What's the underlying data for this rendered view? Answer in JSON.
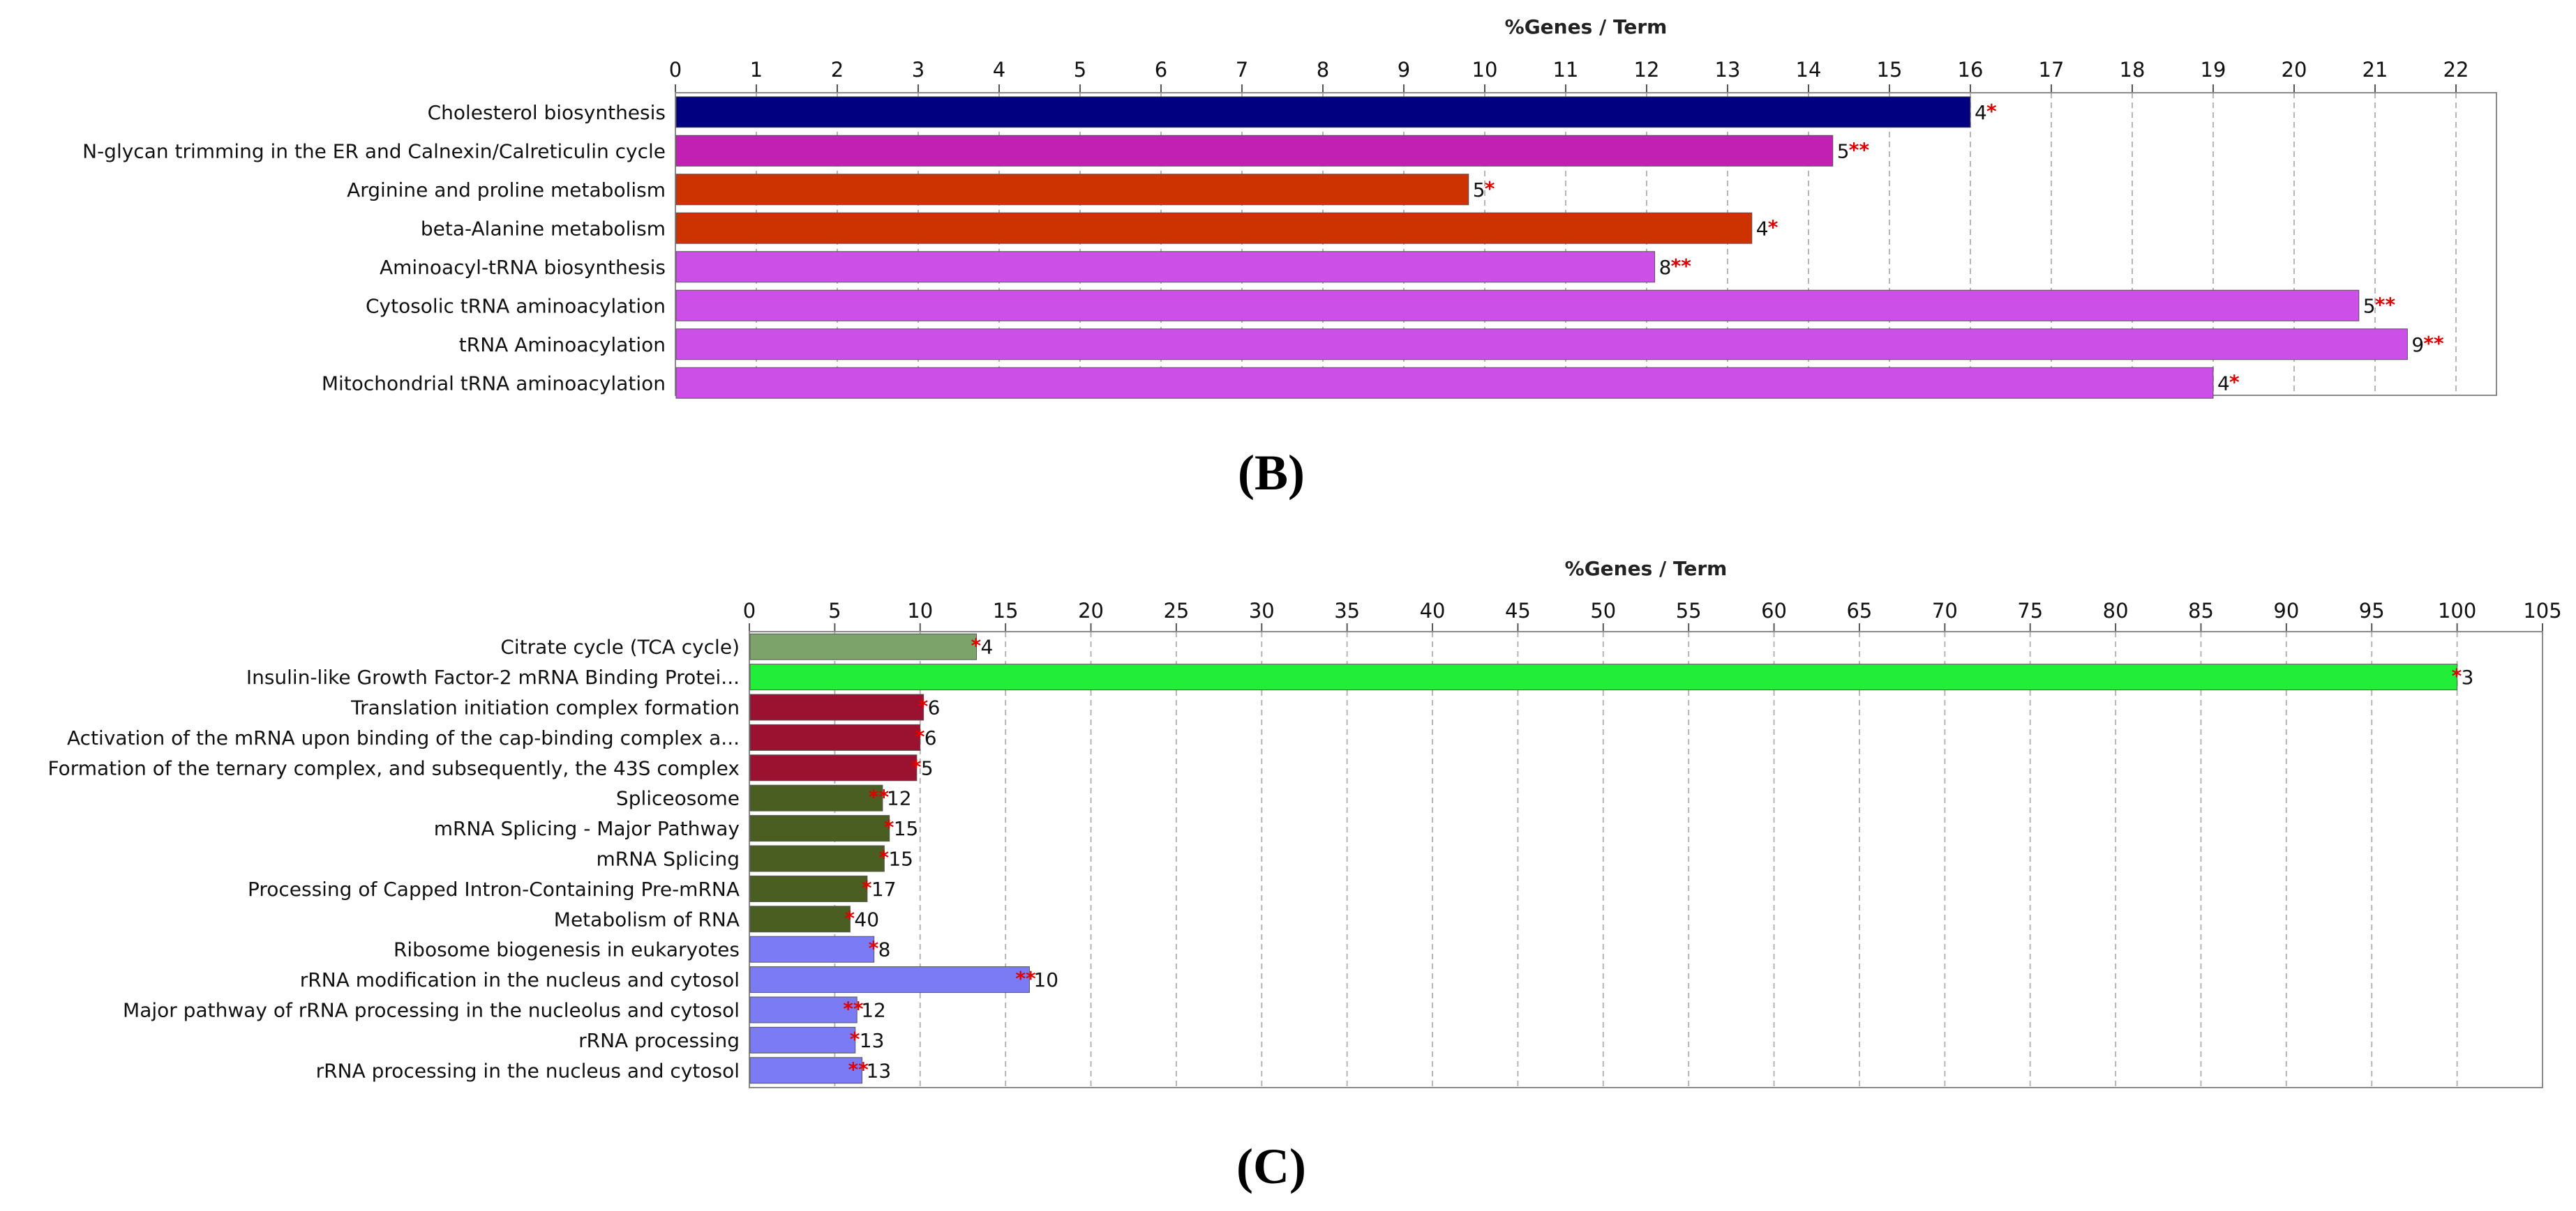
{
  "chart_data": [
    {
      "type": "bar",
      "orientation": "horizontal",
      "panel_label": "(B)",
      "axis_title": "%Genes / Term",
      "xlim": [
        0,
        22.5
      ],
      "ticks": [
        0,
        1,
        2,
        3,
        4,
        5,
        6,
        7,
        8,
        9,
        10,
        11,
        12,
        13,
        14,
        15,
        16,
        17,
        18,
        19,
        20,
        21,
        22
      ],
      "grid": true,
      "bars": [
        {
          "label": "Cholesterol biosynthesis",
          "value": 16.0,
          "count": "4",
          "sig": "*",
          "color": "#000080"
        },
        {
          "label": "N-glycan trimming in the ER and Calnexin/Calreticulin cycle",
          "value": 14.3,
          "count": "5",
          "sig": "**",
          "color": "#C21FB3"
        },
        {
          "label": "Arginine and proline metabolism",
          "value": 9.8,
          "count": "5",
          "sig": "*",
          "color": "#CC3300"
        },
        {
          "label": "beta-Alanine metabolism",
          "value": 13.3,
          "count": "4",
          "sig": "*",
          "color": "#CC3300"
        },
        {
          "label": "Aminoacyl-tRNA biosynthesis",
          "value": 12.1,
          "count": "8",
          "sig": "**",
          "color": "#CC4FE8"
        },
        {
          "label": "Cytosolic tRNA aminoacylation",
          "value": 20.8,
          "count": "5",
          "sig": "**",
          "color": "#CC4FE8"
        },
        {
          "label": "tRNA Aminoacylation",
          "value": 21.4,
          "count": "9",
          "sig": "**",
          "color": "#CC4FE8"
        },
        {
          "label": "Mitochondrial tRNA aminoacylation",
          "value": 19.0,
          "count": "4",
          "sig": "*",
          "color": "#CC4FE8"
        }
      ]
    },
    {
      "type": "bar",
      "orientation": "horizontal",
      "panel_label": "(C)",
      "axis_title": "%Genes / Term",
      "xlim": [
        0,
        105
      ],
      "ticks": [
        0,
        5,
        10,
        15,
        20,
        25,
        30,
        35,
        40,
        45,
        50,
        55,
        60,
        65,
        70,
        75,
        80,
        85,
        90,
        95,
        100,
        105
      ],
      "grid": true,
      "bars": [
        {
          "label": "Citrate cycle (TCA cycle)",
          "value": 13.3,
          "count": "4",
          "sig": "*",
          "color": "#7CA36A"
        },
        {
          "label": "Insulin-like Growth Factor-2 mRNA Binding Protei...",
          "value": 100,
          "count": "3",
          "sig": "*",
          "color": "#22EE3A"
        },
        {
          "label": "Translation initiation complex formation",
          "value": 10.2,
          "count": "6",
          "sig": "*",
          "color": "#9A1230"
        },
        {
          "label": "Activation of the mRNA upon binding of the cap-binding complex a...",
          "value": 10.0,
          "count": "6",
          "sig": "*",
          "color": "#9A1230"
        },
        {
          "label": "Formation of the ternary complex, and subsequently, the 43S complex",
          "value": 9.8,
          "count": "5",
          "sig": "*",
          "color": "#9A1230"
        },
        {
          "label": "Spliceosome",
          "value": 7.8,
          "count": "12",
          "sig": "**",
          "color": "#4A5E22"
        },
        {
          "label": "mRNA Splicing - Major Pathway",
          "value": 8.2,
          "count": "15",
          "sig": "*",
          "color": "#4A5E22"
        },
        {
          "label": "mRNA Splicing",
          "value": 7.9,
          "count": "15",
          "sig": "*",
          "color": "#4A5E22"
        },
        {
          "label": "Processing of Capped Intron-Containing Pre-mRNA",
          "value": 6.9,
          "count": "17",
          "sig": "*",
          "color": "#4A5E22"
        },
        {
          "label": "Metabolism of RNA",
          "value": 5.9,
          "count": "40",
          "sig": "*",
          "color": "#4A5E22"
        },
        {
          "label": "Ribosome biogenesis in eukaryotes",
          "value": 7.3,
          "count": "8",
          "sig": "*",
          "color": "#7B7BF5"
        },
        {
          "label": "rRNA modification in the nucleus and cytosol",
          "value": 16.4,
          "count": "10",
          "sig": "**",
          "color": "#7B7BF5"
        },
        {
          "label": "Major pathway of rRNA processing in the nucleolus and cytosol",
          "value": 6.3,
          "count": "12",
          "sig": "**",
          "color": "#7B7BF5"
        },
        {
          "label": "rRNA processing",
          "value": 6.2,
          "count": "13",
          "sig": "*",
          "color": "#7B7BF5"
        },
        {
          "label": "rRNA processing in the nucleus and cytosol",
          "value": 6.6,
          "count": "13",
          "sig": "**",
          "color": "#7B7BF5"
        }
      ]
    }
  ]
}
